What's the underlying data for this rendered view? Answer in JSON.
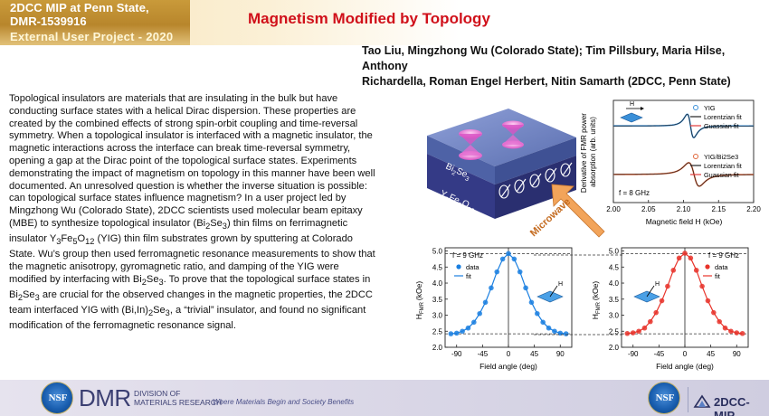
{
  "header": {
    "line1": "2DCC MIP at Penn State,",
    "line2": "DMR-1539916",
    "line3": "External User Project - 2020",
    "title": "Magnetism Modified by Topology"
  },
  "authors": {
    "line1": "Tao Liu, Mingzhong Wu (Colorado State); Tim Pillsbury, Maria Hilse, Anthony",
    "line2": "Richardella, Roman Engel Herbert, Nitin Samarth (2DCC, Penn State)"
  },
  "body": {
    "p1": "Topological insulators are materials that are insulating in the bulk but have conducting surface states with a helical Dirac dispersion. These properties are created by the combined effects of strong spin-orbit coupling and time-reversal symmetry. When a topological insulator is interfaced with a magnetic insulator, the magnetic interactions across the interface can break time-reversal symmetry, opening a gap at the Dirac point of the topological surface states. Experiments demonstrating the impact of magnetism on topology in this manner have been well documented. An unresolved question is whether the inverse situation is possible: can topological surface states influence magnetism? In a user project led by Mingzhong Wu (Colorado State), 2DCC scientists used molecular beam epitaxy (MBE) to synthesize topological insulator (",
    "bise": "Bi",
    "bise_sub1": "2",
    "bise_mid": "Se",
    "bise_sub2": "3",
    "p2": ") thin films on ferrimagnetic insulator ",
    "yig_y": "Y",
    "yig_sub1": "3",
    "yig_fe": "Fe",
    "yig_sub2": "5",
    "yig_o": "O",
    "yig_sub3": "12",
    "p3": " (YIG) thin  film substrates grown by sputtering at Colorado State. Wu’s group then used ferromagnetic resonance measurements to show that the magnetic anisotropy, gyromagnetic ratio, and damping of the YIG were modified by interfacing with  Bi",
    "p3_sub1": "2",
    "p3_se": "Se",
    "p3_sub2": "3",
    "p4": ". To prove that the topological surface states in Bi",
    "p4_sub1": "2",
    "p4_se": "Se",
    "p4_sub2": "3",
    "p5": " are crucial for the observed changes in the magnetic properties, the 2DCC team interfaced YIG with  (Bi,In)",
    "p5_sub1": "2",
    "p5_se": "Se",
    "p5_sub2": "3",
    "p6": ", a “trivial” insulator, and found no significant modification of the ferromagnetic resonance signal."
  },
  "schematic": {
    "layer_top_main": "Bi",
    "layer_top_sub1": "2",
    "layer_top_se": "Se",
    "layer_top_sub2": "3",
    "layer_bottom_y": "Y",
    "layer_bottom_sub1": "3",
    "layer_bottom_fe": "Fe",
    "layer_bottom_sub2": "5",
    "layer_bottom_o": "O",
    "layer_bottom_sub3": "12",
    "arrow_label": "Microwave",
    "colors": {
      "top_layer": "#5b6fb0",
      "bottom_layer": "#3a3f8c",
      "arrow": "#f2a45a",
      "cones": "#e36fd0"
    }
  },
  "footer": {
    "nsf": "NSF",
    "dmr": "DMR",
    "dmr_line1": "DIVISION OF",
    "dmr_line2": "MATERIALS RESEARCH",
    "slogan": "Where Materials Begin and Society Benefits",
    "mip": "2DCC-MIP"
  },
  "chart_data": [
    {
      "type": "line",
      "ylabel": "Derivative of FMR power absorption (arb. units)",
      "xlabel": "Magnetic field H (kOe)",
      "xlim": [
        2.0,
        2.2
      ],
      "x_ticks": [
        "2.00",
        "2.05",
        "2.10",
        "2.15",
        "2.20"
      ],
      "annotation": "f = 8 GHz",
      "inset_label": "H",
      "legend": [
        "YIG",
        "Lorentzian fit",
        "Guassian fit",
        "YIG/Bi2Se3",
        "Lorentzian fit",
        "Guassian fit"
      ],
      "series": [
        {
          "name": "YIG",
          "color": "#3a8fd8",
          "resonance": 2.11,
          "linewidth": 0.008,
          "offset": 0.5
        },
        {
          "name": "YIG/Bi2Se3",
          "color": "#e0663a",
          "resonance": 2.115,
          "linewidth": 0.013,
          "offset": -0.45
        }
      ]
    },
    {
      "type": "scatter",
      "annotation": "f = 9 GHz",
      "xlabel": "Field angle (deg)",
      "ylabel_main": "H",
      "ylabel_sub": "FMR",
      "ylabel_unit": "(kOe)",
      "xlim": [
        -110,
        110
      ],
      "ylim": [
        2.0,
        5.1
      ],
      "x_ticks": [
        "-90",
        "-45",
        "0",
        "45",
        "90"
      ],
      "y_ticks": [
        "2.0",
        "2.5",
        "3.0",
        "3.5",
        "4.0",
        "4.5",
        "5.0"
      ],
      "legend": [
        "data",
        "fit"
      ],
      "color": "#1a7fe0",
      "x": [
        -100,
        -90,
        -80,
        -70,
        -60,
        -50,
        -40,
        -30,
        -20,
        -10,
        0,
        10,
        20,
        30,
        40,
        50,
        60,
        70,
        80,
        90,
        100
      ],
      "y": [
        2.42,
        2.44,
        2.5,
        2.6,
        2.78,
        3.05,
        3.4,
        3.85,
        4.35,
        4.75,
        4.92,
        4.75,
        4.35,
        3.85,
        3.4,
        3.05,
        2.78,
        2.6,
        2.5,
        2.44,
        2.42
      ]
    },
    {
      "type": "scatter",
      "annotation": "f = 9 GHz",
      "xlabel": "Field angle (deg)",
      "ylabel_main": "H",
      "ylabel_sub": "FMR",
      "ylabel_unit": "(kOe)",
      "xlim": [
        -110,
        110
      ],
      "ylim": [
        2.0,
        5.1
      ],
      "x_ticks": [
        "-90",
        "-45",
        "0",
        "45",
        "90"
      ],
      "y_ticks": [
        "2.0",
        "2.5",
        "3.0",
        "3.5",
        "4.0",
        "4.5",
        "5.0"
      ],
      "legend": [
        "data",
        "fit"
      ],
      "color": "#e8332a",
      "x": [
        -100,
        -90,
        -80,
        -70,
        -60,
        -50,
        -40,
        -30,
        -20,
        -10,
        0,
        10,
        20,
        30,
        40,
        50,
        60,
        70,
        80,
        90,
        100
      ],
      "y": [
        2.43,
        2.45,
        2.5,
        2.6,
        2.8,
        3.08,
        3.45,
        3.9,
        4.4,
        4.78,
        4.93,
        4.78,
        4.4,
        3.9,
        3.45,
        3.08,
        2.8,
        2.6,
        2.5,
        2.45,
        2.43
      ]
    }
  ]
}
